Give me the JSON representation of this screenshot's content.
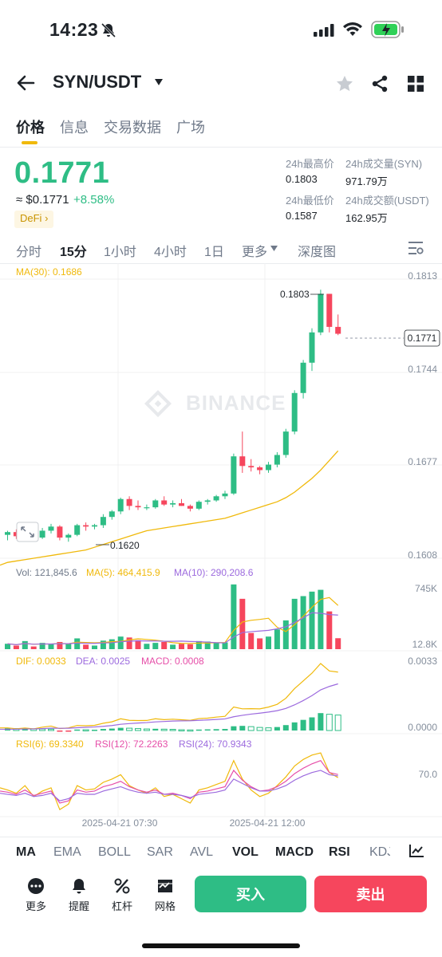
{
  "status_bar": {
    "time": "14:23"
  },
  "header": {
    "pair": "SYN/USDT"
  },
  "tabs": [
    "价格",
    "信息",
    "交易数据",
    "广场"
  ],
  "price": {
    "last": "0.1771",
    "usd": "≈ $0.1771",
    "change": "+8.58%",
    "tag": "DeFi"
  },
  "stats": {
    "high_label": "24h最高价",
    "high": "0.1803",
    "low_label": "24h最低价",
    "low": "0.1587",
    "vol_base_label": "24h成交量(SYN)",
    "vol_base": "971.79万",
    "vol_quote_label": "24h成交额(USDT)",
    "vol_quote": "162.95万"
  },
  "intervals": [
    "分时",
    "15分",
    "1小时",
    "4小时",
    "1日",
    "更多",
    "深度图"
  ],
  "chart": {
    "ma30_label": "MA(30): 0.1686",
    "y_ticks": [
      "0.1813",
      "0.1744",
      "0.1677",
      "0.1608"
    ],
    "current_price": "0.1771",
    "high_mark": "0.1803",
    "low_mark": "0.1620",
    "watermark": "BINANCE",
    "vol_label": "Vol: 121,845.6",
    "vol_ma5": "MA(5): 464,415.9",
    "vol_ma10": "MA(10): 290,208.6",
    "vol_ticks": [
      "745K",
      "12.8K"
    ],
    "dif": "DIF: 0.0033",
    "dea": "DEA: 0.0025",
    "macd": "MACD: 0.0008",
    "macd_ticks": [
      "0.0033",
      "0.0000"
    ],
    "rsi6": "RSI(6): 69.3340",
    "rsi12": "RSI(12): 72.2263",
    "rsi24": "RSI(24): 70.9343",
    "rsi_tick": "70.0",
    "x_labels": [
      "2025-04-21 07:30",
      "2025-04-21 12:00"
    ],
    "colors": {
      "up": "#2ebd85",
      "down": "#f6465d",
      "ma": "#f0b90b",
      "purple": "#9c6ade",
      "pink": "#e64ea8"
    }
  },
  "chart_data": {
    "type": "candlestick",
    "ylim": [
      0.1608,
      0.1813
    ],
    "candles": [
      {
        "o": 0.1625,
        "h": 0.1628,
        "l": 0.1621,
        "c": 0.1627
      },
      {
        "o": 0.1627,
        "h": 0.1629,
        "l": 0.1622,
        "c": 0.1624
      },
      {
        "o": 0.1624,
        "h": 0.1628,
        "l": 0.162,
        "c": 0.1626
      },
      {
        "o": 0.1626,
        "h": 0.1627,
        "l": 0.1622,
        "c": 0.1623
      },
      {
        "o": 0.1623,
        "h": 0.163,
        "l": 0.1622,
        "c": 0.1628
      },
      {
        "o": 0.1628,
        "h": 0.1633,
        "l": 0.1626,
        "c": 0.1631
      },
      {
        "o": 0.1631,
        "h": 0.1632,
        "l": 0.1621,
        "c": 0.1623
      },
      {
        "o": 0.1623,
        "h": 0.1626,
        "l": 0.162,
        "c": 0.1625
      },
      {
        "o": 0.1625,
        "h": 0.1633,
        "l": 0.1624,
        "c": 0.1632
      },
      {
        "o": 0.1632,
        "h": 0.1634,
        "l": 0.1628,
        "c": 0.1631
      },
      {
        "o": 0.1631,
        "h": 0.1633,
        "l": 0.1629,
        "c": 0.1632
      },
      {
        "o": 0.1632,
        "h": 0.164,
        "l": 0.163,
        "c": 0.1638
      },
      {
        "o": 0.1638,
        "h": 0.1643,
        "l": 0.1636,
        "c": 0.1642
      },
      {
        "o": 0.1642,
        "h": 0.1652,
        "l": 0.164,
        "c": 0.1651
      },
      {
        "o": 0.1651,
        "h": 0.1653,
        "l": 0.1643,
        "c": 0.1646
      },
      {
        "o": 0.1646,
        "h": 0.165,
        "l": 0.1643,
        "c": 0.1645
      },
      {
        "o": 0.1645,
        "h": 0.1647,
        "l": 0.1643,
        "c": 0.1645
      },
      {
        "o": 0.1645,
        "h": 0.1651,
        "l": 0.1644,
        "c": 0.165
      },
      {
        "o": 0.165,
        "h": 0.1653,
        "l": 0.1646,
        "c": 0.1647
      },
      {
        "o": 0.1647,
        "h": 0.165,
        "l": 0.1645,
        "c": 0.1648
      },
      {
        "o": 0.1648,
        "h": 0.1651,
        "l": 0.1646,
        "c": 0.1646
      },
      {
        "o": 0.1646,
        "h": 0.1647,
        "l": 0.1642,
        "c": 0.1644
      },
      {
        "o": 0.1644,
        "h": 0.165,
        "l": 0.1643,
        "c": 0.1649
      },
      {
        "o": 0.1649,
        "h": 0.1651,
        "l": 0.1647,
        "c": 0.165
      },
      {
        "o": 0.165,
        "h": 0.1654,
        "l": 0.1649,
        "c": 0.1653
      },
      {
        "o": 0.1653,
        "h": 0.1657,
        "l": 0.1651,
        "c": 0.1655
      },
      {
        "o": 0.1655,
        "h": 0.1684,
        "l": 0.1654,
        "c": 0.1682
      },
      {
        "o": 0.1682,
        "h": 0.17,
        "l": 0.167,
        "c": 0.1675
      },
      {
        "o": 0.1675,
        "h": 0.168,
        "l": 0.1671,
        "c": 0.1674
      },
      {
        "o": 0.1674,
        "h": 0.1675,
        "l": 0.1669,
        "c": 0.1672
      },
      {
        "o": 0.1672,
        "h": 0.1678,
        "l": 0.167,
        "c": 0.1676
      },
      {
        "o": 0.1676,
        "h": 0.1685,
        "l": 0.1674,
        "c": 0.1683
      },
      {
        "o": 0.1683,
        "h": 0.1702,
        "l": 0.1681,
        "c": 0.17
      },
      {
        "o": 0.17,
        "h": 0.173,
        "l": 0.1698,
        "c": 0.1728
      },
      {
        "o": 0.1728,
        "h": 0.1752,
        "l": 0.1724,
        "c": 0.175
      },
      {
        "o": 0.175,
        "h": 0.1775,
        "l": 0.1744,
        "c": 0.1772
      },
      {
        "o": 0.1772,
        "h": 0.1803,
        "l": 0.177,
        "c": 0.18
      },
      {
        "o": 0.18,
        "h": 0.18,
        "l": 0.1772,
        "c": 0.1776
      },
      {
        "o": 0.1776,
        "h": 0.1785,
        "l": 0.177,
        "c": 0.1771
      }
    ],
    "ma30": [
      0.1605,
      0.1606,
      0.1607,
      0.1608,
      0.1609,
      0.161,
      0.1611,
      0.1612,
      0.1613,
      0.1614,
      0.1616,
      0.1618,
      0.162,
      0.1622,
      0.1624,
      0.1626,
      0.1628,
      0.1629,
      0.163,
      0.1631,
      0.1632,
      0.1633,
      0.1634,
      0.1635,
      0.1636,
      0.1637,
      0.1639,
      0.1641,
      0.1643,
      0.1645,
      0.1647,
      0.1649,
      0.1652,
      0.1656,
      0.1661,
      0.1666,
      0.1672,
      0.1679,
      0.1686
    ],
    "volume": [
      60,
      40,
      90,
      30,
      70,
      55,
      80,
      65,
      120,
      50,
      40,
      95,
      110,
      140,
      130,
      100,
      60,
      70,
      80,
      50,
      60,
      55,
      90,
      85,
      70,
      75,
      720,
      560,
      180,
      120,
      140,
      220,
      320,
      560,
      590,
      640,
      660,
      420,
      121.8
    ],
    "macd_hist": [
      0.00012,
      0.0001,
      0.00011,
      9e-05,
      8e-05,
      7e-05,
      -2e-05,
      -3e-05,
      5e-05,
      4e-05,
      4e-05,
      8e-05,
      0.0001,
      0.00014,
      0.00012,
      0.0001,
      8e-05,
      9e-05,
      7e-05,
      6e-05,
      4e-05,
      3e-05,
      5e-05,
      6e-05,
      7e-05,
      8e-05,
      0.00022,
      0.00024,
      0.0002,
      0.00016,
      0.00014,
      0.00018,
      0.00028,
      0.00042,
      0.00055,
      0.00068,
      0.0009,
      0.00084,
      0.0008
    ],
    "rsi6": [
      58,
      55,
      62,
      52,
      57,
      60,
      40,
      45,
      62,
      58,
      59,
      65,
      68,
      72,
      62,
      58,
      55,
      60,
      52,
      54,
      50,
      46,
      58,
      60,
      63,
      66,
      85,
      68,
      58,
      52,
      55,
      62,
      70,
      80,
      86,
      90,
      92,
      74,
      69.3
    ],
    "rsi12": [
      56,
      54,
      58,
      53,
      55,
      57,
      46,
      48,
      58,
      56,
      57,
      61,
      63,
      66,
      61,
      58,
      56,
      58,
      54,
      55,
      53,
      50,
      56,
      57,
      59,
      61,
      76,
      67,
      61,
      57,
      58,
      61,
      66,
      73,
      78,
      82,
      85,
      74,
      72.2
    ],
    "rsi24": [
      54,
      53,
      55,
      52,
      53,
      55,
      48,
      50,
      55,
      54,
      54,
      57,
      59,
      61,
      58,
      56,
      55,
      56,
      54,
      54,
      53,
      51,
      54,
      55,
      56,
      58,
      68,
      64,
      60,
      57,
      57,
      59,
      62,
      67,
      71,
      74,
      76,
      72,
      70.9
    ]
  },
  "indicator_tabs": [
    "MA",
    "EMA",
    "BOLL",
    "SAR",
    "AVL",
    "VOL",
    "MACD",
    "RSI",
    "KDJ"
  ],
  "bottom_bar": {
    "more": "更多",
    "alert": "提醒",
    "leverage": "杠杆",
    "grid": "网格",
    "buy": "买入",
    "sell": "卖出"
  }
}
